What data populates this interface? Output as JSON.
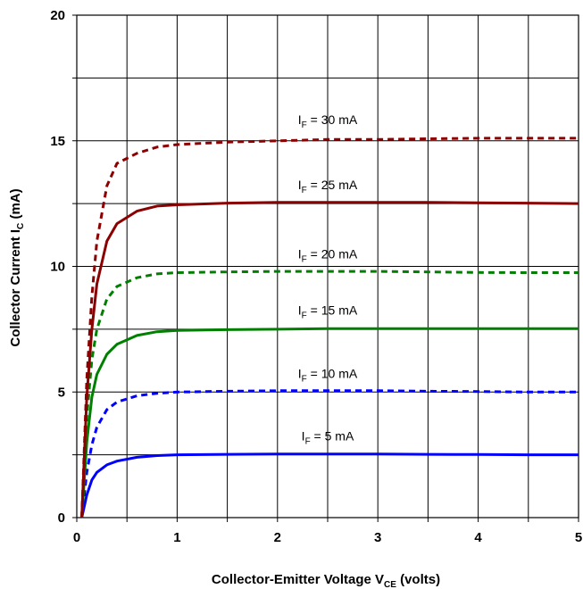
{
  "chart_data": {
    "type": "line",
    "title": "",
    "xlabel": {
      "main": "Collector-Emitter Voltage V",
      "sub": "CE",
      "tail": " (volts)"
    },
    "ylabel": {
      "main": "Collector Current I",
      "sub": "C",
      "tail": " (mA)"
    },
    "xlim": [
      0,
      5
    ],
    "ylim": [
      0,
      20
    ],
    "x_ticks": [
      0,
      0.5,
      1,
      1.5,
      2,
      2.5,
      3,
      3.5,
      4,
      4.5,
      5
    ],
    "x_tick_labels": [
      "0",
      "",
      "1",
      "",
      "2",
      "",
      "3",
      "",
      "4",
      "",
      "5"
    ],
    "y_ticks": [
      0,
      2.5,
      5,
      7.5,
      10,
      12.5,
      15,
      17.5,
      20
    ],
    "y_tick_labels": [
      "0",
      "",
      "5",
      "",
      "10",
      "",
      "15",
      "",
      "20"
    ],
    "grid": true,
    "series": [
      {
        "name": "IF = 5 mA",
        "label_main": "I",
        "label_sub": "F",
        "label_tail": " = 5 mA",
        "color": "#0000ff",
        "dashed": false,
        "x": [
          0.05,
          0.1,
          0.15,
          0.2,
          0.3,
          0.4,
          0.6,
          0.8,
          1.0,
          1.5,
          2.0,
          2.5,
          3.0,
          3.5,
          4.0,
          4.5,
          5.0
        ],
        "y": [
          0,
          0.9,
          1.5,
          1.8,
          2.1,
          2.25,
          2.4,
          2.47,
          2.5,
          2.52,
          2.53,
          2.53,
          2.53,
          2.52,
          2.51,
          2.5,
          2.5
        ]
      },
      {
        "name": "IF = 10 mA",
        "label_main": "I",
        "label_sub": "F",
        "label_tail": " = 10 mA",
        "color": "#0000ff",
        "dashed": true,
        "x": [
          0.05,
          0.1,
          0.15,
          0.2,
          0.3,
          0.4,
          0.6,
          0.8,
          1.0,
          1.5,
          2.0,
          2.5,
          3.0,
          3.5,
          4.0,
          4.5,
          5.0
        ],
        "y": [
          0,
          1.8,
          2.9,
          3.6,
          4.3,
          4.6,
          4.85,
          4.95,
          5.0,
          5.03,
          5.05,
          5.05,
          5.05,
          5.03,
          5.02,
          5.0,
          5.0
        ]
      },
      {
        "name": "IF = 15 mA",
        "label_main": "I",
        "label_sub": "F",
        "label_tail": " = 15 mA",
        "color": "#008000",
        "dashed": false,
        "x": [
          0.05,
          0.1,
          0.15,
          0.2,
          0.3,
          0.4,
          0.6,
          0.8,
          1.0,
          1.5,
          2.0,
          2.5,
          3.0,
          3.5,
          4.0,
          4.5,
          5.0
        ],
        "y": [
          0,
          3.0,
          4.8,
          5.7,
          6.5,
          6.9,
          7.25,
          7.4,
          7.45,
          7.48,
          7.5,
          7.52,
          7.52,
          7.52,
          7.52,
          7.52,
          7.52
        ]
      },
      {
        "name": "IF = 20 mA",
        "label_main": "I",
        "label_sub": "F",
        "label_tail": " = 20 mA",
        "color": "#008000",
        "dashed": true,
        "x": [
          0.05,
          0.1,
          0.15,
          0.2,
          0.3,
          0.4,
          0.6,
          0.8,
          1.0,
          1.5,
          2.0,
          2.5,
          3.0,
          3.5,
          4.0,
          4.5,
          5.0
        ],
        "y": [
          0,
          4.0,
          6.3,
          7.5,
          8.7,
          9.2,
          9.55,
          9.7,
          9.75,
          9.78,
          9.8,
          9.8,
          9.8,
          9.78,
          9.76,
          9.75,
          9.75
        ]
      },
      {
        "name": "IF = 25 mA",
        "label_main": "I",
        "label_sub": "F",
        "label_tail": " = 25 mA",
        "color": "#8b0000",
        "dashed": false,
        "x": [
          0.05,
          0.1,
          0.15,
          0.2,
          0.3,
          0.4,
          0.6,
          0.8,
          1.0,
          1.5,
          2.0,
          2.5,
          3.0,
          3.5,
          4.0,
          4.5,
          5.0
        ],
        "y": [
          0,
          4.8,
          7.5,
          9.3,
          11.0,
          11.7,
          12.2,
          12.4,
          12.45,
          12.52,
          12.55,
          12.55,
          12.55,
          12.55,
          12.53,
          12.52,
          12.5
        ]
      },
      {
        "name": "IF = 30 mA",
        "label_main": "I",
        "label_sub": "F",
        "label_tail": " = 30 mA",
        "color": "#8b0000",
        "dashed": true,
        "x": [
          0.05,
          0.1,
          0.15,
          0.2,
          0.3,
          0.4,
          0.6,
          0.8,
          1.0,
          1.5,
          2.0,
          2.5,
          3.0,
          3.5,
          4.0,
          4.5,
          5.0
        ],
        "y": [
          0,
          5.5,
          8.8,
          11.0,
          13.2,
          14.1,
          14.5,
          14.75,
          14.85,
          14.95,
          15.0,
          15.05,
          15.05,
          15.08,
          15.1,
          15.1,
          15.1
        ]
      }
    ]
  }
}
